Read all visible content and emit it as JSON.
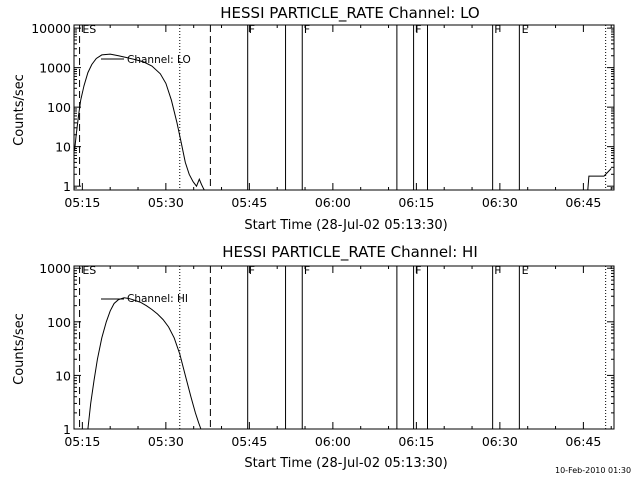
{
  "footer_stamp": "10-Feb-2010 01:30",
  "chart_data": [
    {
      "type": "line",
      "title": "HESSI PARTICLE_RATE Channel: LO",
      "xlabel": "Start Time (28-Jul-02 05:13:30)",
      "ylabel": "Counts/sec",
      "xlim_minutes": [
        0,
        97
      ],
      "x_tick_labels": [
        "05:15",
        "05:30",
        "05:45",
        "06:00",
        "06:15",
        "06:30",
        "06:45"
      ],
      "x_ticks_minutes": [
        1.5,
        16.5,
        31.5,
        46.5,
        61.5,
        76.5,
        91.5
      ],
      "y_scale": "log",
      "ylim": [
        0.8,
        12000
      ],
      "y_ticks": [
        1,
        10,
        100,
        1000,
        10000
      ],
      "y_tick_labels": [
        "1",
        "10",
        "100",
        "1000",
        "10000"
      ],
      "legend": "Channel: LO",
      "series": [
        {
          "name": "Channel: LO",
          "x": [
            0.1,
            0.4,
            0.8,
            1.2,
            1.8,
            2.5,
            3.2,
            4.0,
            5.0,
            6.5,
            8.0,
            9.5,
            11.0,
            12.5,
            14.0,
            15.5,
            16.5,
            17.5,
            18.5,
            19.3,
            20.0,
            20.7,
            21.4,
            22.0,
            22.5,
            22.9,
            23.2,
            23.4
          ],
          "y": [
            8,
            20,
            60,
            150,
            350,
            750,
            1200,
            1700,
            2100,
            2200,
            2000,
            1800,
            1600,
            1400,
            1100,
            700,
            400,
            150,
            40,
            12,
            4,
            2,
            1.3,
            1,
            1.5,
            1.1,
            0.9,
            0.8
          ]
        },
        {
          "name": "",
          "x": [
            92.3,
            92.5,
            95.0,
            95.2,
            96.5
          ],
          "y": [
            0.8,
            1.8,
            1.8,
            1.8,
            2.8
          ]
        }
      ],
      "dashed_lines_minutes": [
        1.0,
        24.5
      ],
      "dotted_lines_minutes": [
        19.0,
        95.5
      ],
      "solid_lines_minutes": [
        31.2,
        38.0,
        41.0,
        58.0,
        61.0,
        63.5,
        75.2,
        80.0
      ],
      "flags": [
        {
          "label": "ES",
          "x": 1.5
        },
        {
          "label": "F",
          "x": 31.4
        },
        {
          "label": "F",
          "x": 41.3
        },
        {
          "label": "F",
          "x": 61.3
        },
        {
          "label": "F",
          "x": 75.5
        },
        {
          "label": "E",
          "x": 80.4
        }
      ]
    },
    {
      "type": "line",
      "title": "HESSI PARTICLE_RATE Channel: HI",
      "xlabel": "Start Time (28-Jul-02 05:13:30)",
      "ylabel": "Counts/sec",
      "xlim_minutes": [
        0,
        97
      ],
      "x_tick_labels": [
        "05:15",
        "05:30",
        "05:45",
        "06:00",
        "06:15",
        "06:30",
        "06:45"
      ],
      "x_ticks_minutes": [
        1.5,
        16.5,
        31.5,
        46.5,
        61.5,
        76.5,
        91.5
      ],
      "y_scale": "log",
      "ylim": [
        1,
        1100
      ],
      "y_ticks": [
        1,
        10,
        100,
        1000
      ],
      "y_tick_labels": [
        "1",
        "10",
        "100",
        "1000"
      ],
      "legend": "Channel: HI",
      "series": [
        {
          "name": "Channel: HI",
          "x": [
            2.5,
            3.0,
            3.6,
            4.2,
            5.0,
            5.8,
            6.5,
            7.2,
            8.0,
            9.0,
            10.0,
            11.0,
            12.0,
            13.0,
            14.0,
            15.0,
            16.0,
            17.0,
            18.0,
            19.0,
            20.0,
            21.0,
            21.8,
            22.4,
            22.8
          ],
          "y": [
            1,
            3,
            8,
            20,
            50,
            100,
            160,
            220,
            260,
            280,
            270,
            250,
            230,
            200,
            170,
            140,
            110,
            80,
            50,
            25,
            10,
            4,
            2,
            1.3,
            1
          ]
        }
      ],
      "dashed_lines_minutes": [
        1.0,
        24.5
      ],
      "dotted_lines_minutes": [
        19.0,
        95.5
      ],
      "solid_lines_minutes": [
        31.2,
        38.0,
        41.0,
        58.0,
        61.0,
        63.5,
        75.2,
        80.0
      ],
      "flags": [
        {
          "label": "ES",
          "x": 1.5
        },
        {
          "label": "F",
          "x": 31.4
        },
        {
          "label": "F",
          "x": 41.3
        },
        {
          "label": "F",
          "x": 61.3
        },
        {
          "label": "F",
          "x": 75.5
        },
        {
          "label": "E",
          "x": 80.4
        }
      ]
    }
  ]
}
